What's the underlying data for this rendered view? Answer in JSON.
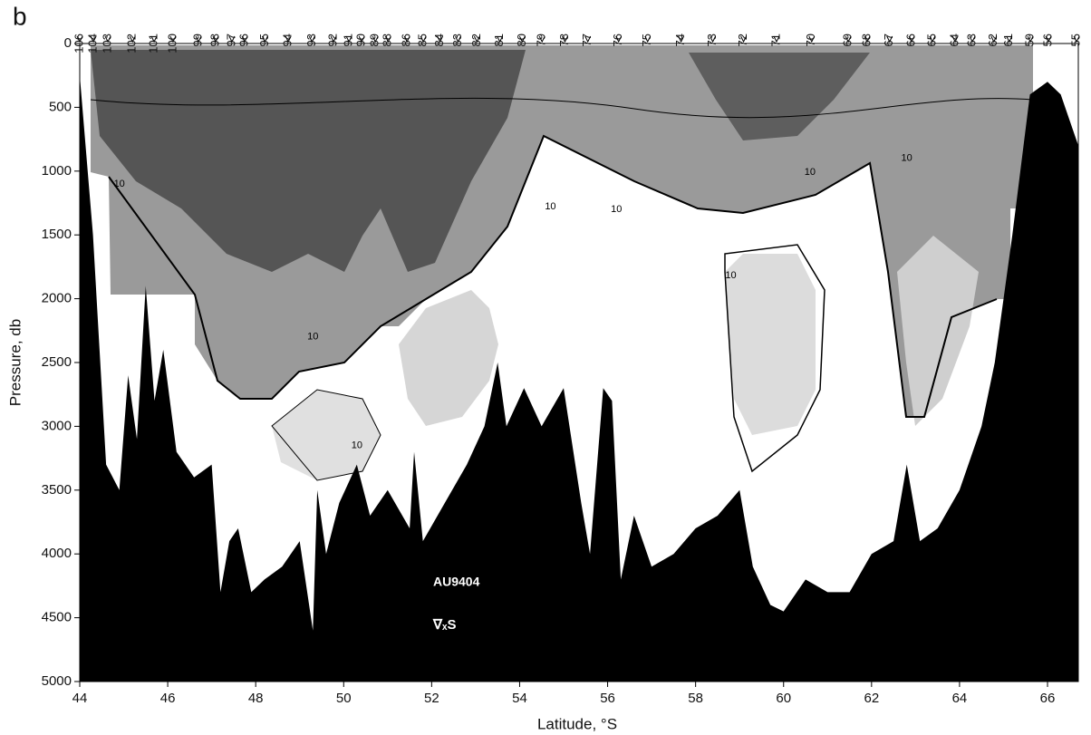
{
  "chart_data": {
    "type": "section",
    "panel_label": "b",
    "xlabel": "Latitude, °S",
    "ylabel": "Pressure, db",
    "xlim": [
      44,
      66.7
    ],
    "xticks": [
      44,
      46,
      48,
      50,
      52,
      54,
      56,
      58,
      60,
      62,
      64,
      66
    ],
    "ylim": [
      0,
      5000
    ],
    "yticks": [
      0,
      500,
      1000,
      1500,
      2000,
      2500,
      3000,
      3500,
      4000,
      4500,
      5000
    ],
    "y_inverted": true,
    "stations": {
      "labels": [
        "106",
        "104",
        "103",
        "102",
        "101",
        "100",
        "99",
        "98",
        "97",
        "96",
        "95",
        "94",
        "93",
        "92",
        "91",
        "90",
        "89",
        "88",
        "86",
        "85",
        "84",
        "83",
        "82",
        "81",
        "80",
        "79",
        "78",
        "77",
        "76",
        "75",
        "74",
        "73",
        "72",
        "71",
        "70",
        "69",
        "68",
        "67",
        "66",
        "65",
        "64",
        "63",
        "62",
        "61",
        "59",
        "56",
        "55"
      ],
      "x": [
        44.0,
        44.31,
        44.64,
        45.2,
        45.69,
        46.12,
        46.7,
        47.09,
        47.46,
        47.75,
        48.21,
        48.74,
        49.28,
        49.77,
        50.12,
        50.41,
        50.72,
        51.01,
        51.44,
        51.81,
        52.19,
        52.6,
        53.03,
        53.55,
        54.06,
        54.51,
        55.03,
        55.55,
        56.25,
        56.91,
        57.67,
        58.39,
        59.09,
        59.84,
        60.64,
        61.47,
        61.9,
        62.41,
        62.91,
        63.38,
        63.9,
        64.29,
        64.78,
        65.13,
        65.61,
        66.02,
        66.66
      ]
    },
    "bathymetry": {
      "color": "#000000",
      "x": [
        44.0,
        44.3,
        44.6,
        44.9,
        45.1,
        45.3,
        45.5,
        45.7,
        45.9,
        46.2,
        46.6,
        47.0,
        47.2,
        47.4,
        47.6,
        47.9,
        48.2,
        48.6,
        49.0,
        49.3,
        49.4,
        49.6,
        49.9,
        50.3,
        50.6,
        51.0,
        51.5,
        51.6,
        51.8,
        52.3,
        52.8,
        53.2,
        53.5,
        53.7,
        54.1,
        54.5,
        55.0,
        55.4,
        55.6,
        55.9,
        56.1,
        56.3,
        56.6,
        57.0,
        57.5,
        58.0,
        58.5,
        59.0,
        59.3,
        59.7,
        60.0,
        60.5,
        61.0,
        61.5,
        62.0,
        62.5,
        62.8,
        63.1,
        63.5,
        64.0,
        64.5,
        64.8,
        65.2,
        65.6,
        66.0,
        66.3,
        66.7
      ],
      "values": [
        250,
        1500,
        3300,
        3500,
        2600,
        3100,
        1900,
        2800,
        2400,
        3200,
        3400,
        3300,
        4300,
        3900,
        3800,
        4300,
        4200,
        4100,
        3900,
        4600,
        3500,
        4000,
        3600,
        3300,
        3700,
        3500,
        3800,
        3200,
        3900,
        3600,
        3300,
        3000,
        2500,
        3000,
        2700,
        3000,
        2700,
        3600,
        4000,
        2700,
        2800,
        4200,
        3700,
        4100,
        4000,
        3800,
        3700,
        3500,
        4100,
        4400,
        4450,
        4200,
        4300,
        4300,
        4000,
        3900,
        3300,
        3900,
        3800,
        3500,
        3000,
        2500,
        1500,
        400,
        300,
        400,
        800
      ]
    },
    "contour_labels": {
      "text": [
        "10",
        "10",
        "10",
        "10",
        "10",
        "10",
        "10",
        "10"
      ],
      "x": [
        44.9,
        49.3,
        50.3,
        54.7,
        56.2,
        60.6,
        62.8,
        58.8
      ],
      "y": [
        1100,
        2300,
        3150,
        1280,
        1300,
        1010,
        900,
        1820
      ]
    },
    "annotations": [
      "AU9404",
      "∇ₓS"
    ]
  }
}
